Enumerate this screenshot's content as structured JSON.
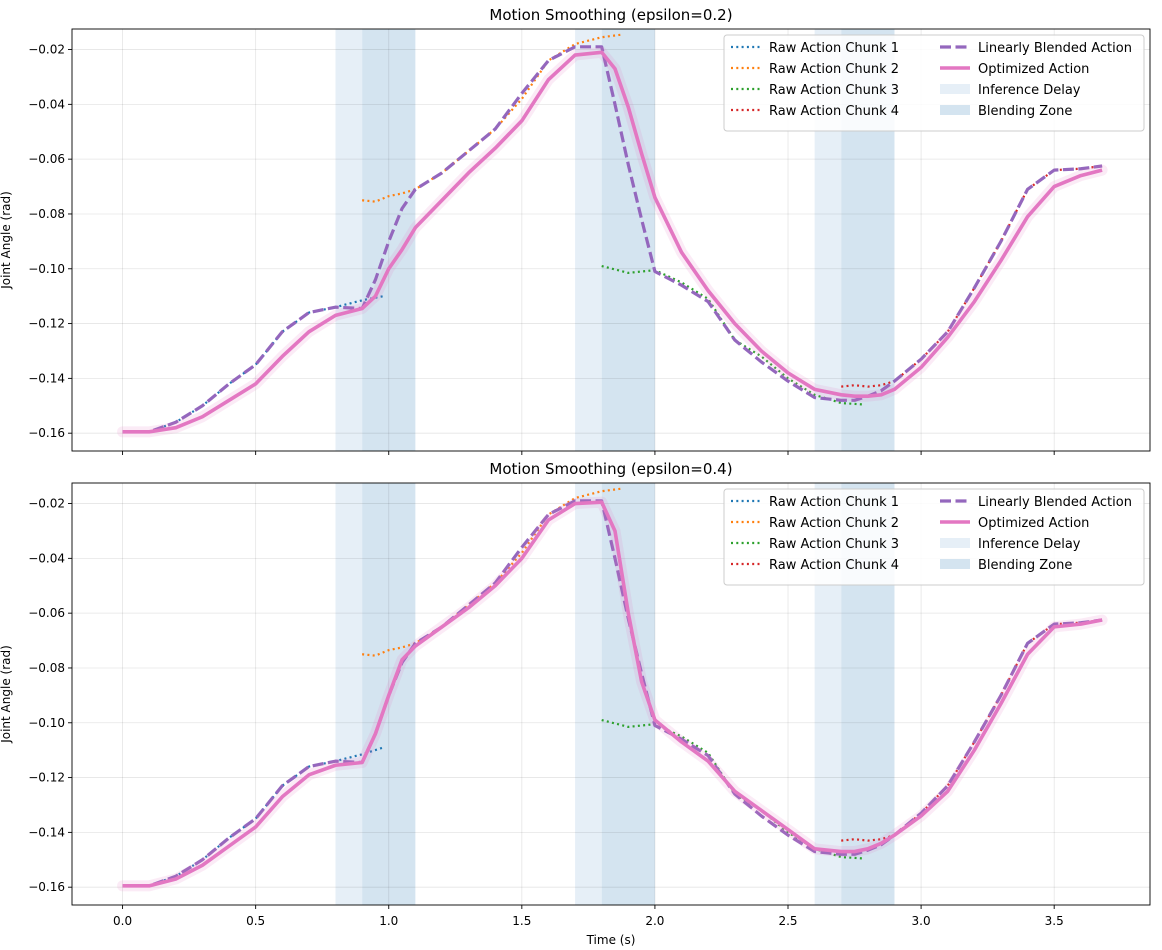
{
  "chart_data": [
    {
      "type": "line",
      "title": "Motion Smoothing (epsilon=0.2)",
      "xlabel": "",
      "ylabel": "Joint Angle (rad)",
      "xlim": [
        -0.19,
        3.86
      ],
      "ylim": [
        -0.1665,
        -0.0125
      ],
      "xticks": [
        0.0,
        0.5,
        1.0,
        1.5,
        2.0,
        2.5,
        3.0,
        3.5
      ],
      "xtick_labels": [],
      "yticks": [
        -0.16,
        -0.14,
        -0.12,
        -0.1,
        -0.08,
        -0.06,
        -0.04,
        -0.02
      ],
      "ytick_labels": [
        "−0.16",
        "−0.14",
        "−0.12",
        "−0.10",
        "−0.08",
        "−0.06",
        "−0.04",
        "−0.02"
      ],
      "grid": true,
      "legend_position": "top-right",
      "legend": [
        {
          "label": "Raw Action Chunk 1",
          "style": "dotted",
          "color": "#1f77b4"
        },
        {
          "label": "Raw Action Chunk 2",
          "style": "dotted",
          "color": "#ff7f0e"
        },
        {
          "label": "Raw Action Chunk 3",
          "style": "dotted",
          "color": "#2ca02c"
        },
        {
          "label": "Raw Action Chunk 4",
          "style": "dotted",
          "color": "#d62728"
        },
        {
          "label": "Linearly Blended Action",
          "style": "dashed",
          "color": "#9467bd"
        },
        {
          "label": "Optimized Action",
          "style": "solid",
          "color": "#e377c2"
        },
        {
          "label": "Inference Delay",
          "style": "patch",
          "color": "#e6eff7"
        },
        {
          "label": "Blending Zone",
          "style": "patch",
          "color": "#d4e4f0"
        }
      ],
      "spans": [
        {
          "kind": "Inference Delay",
          "x": [
            0.8,
            0.9
          ]
        },
        {
          "kind": "Blending Zone",
          "x": [
            0.9,
            1.1
          ]
        },
        {
          "kind": "Inference Delay",
          "x": [
            1.7,
            1.8
          ]
        },
        {
          "kind": "Blending Zone",
          "x": [
            1.8,
            2.0
          ]
        },
        {
          "kind": "Inference Delay",
          "x": [
            2.6,
            2.7
          ]
        },
        {
          "kind": "Blending Zone",
          "x": [
            2.7,
            2.9
          ]
        }
      ],
      "series": [
        {
          "name": "Raw Action Chunk 1",
          "color": "#1f77b4",
          "style": "dotted",
          "x": [
            0.0,
            0.1,
            0.2,
            0.3,
            0.4,
            0.5,
            0.6,
            0.7,
            0.8,
            0.9,
            0.98
          ],
          "y": [
            -0.1595,
            -0.1595,
            -0.156,
            -0.15,
            -0.142,
            -0.135,
            -0.123,
            -0.116,
            -0.114,
            -0.1115,
            -0.11
          ]
        },
        {
          "name": "Raw Action Chunk 2",
          "color": "#ff7f0e",
          "style": "dotted",
          "x": [
            0.9,
            0.95,
            1.0,
            1.05,
            1.1,
            1.2,
            1.3,
            1.4,
            1.5,
            1.6,
            1.7,
            1.8,
            1.88
          ],
          "y": [
            -0.075,
            -0.0755,
            -0.0735,
            -0.0725,
            -0.071,
            -0.065,
            -0.057,
            -0.049,
            -0.038,
            -0.024,
            -0.018,
            -0.0155,
            -0.0145
          ]
        },
        {
          "name": "Raw Action Chunk 3",
          "color": "#2ca02c",
          "style": "dotted",
          "x": [
            1.8,
            1.9,
            2.0,
            2.1,
            2.2,
            2.3,
            2.4,
            2.5,
            2.6,
            2.7,
            2.78
          ],
          "y": [
            -0.099,
            -0.1015,
            -0.1005,
            -0.105,
            -0.111,
            -0.126,
            -0.132,
            -0.14,
            -0.146,
            -0.149,
            -0.1495
          ]
        },
        {
          "name": "Raw Action Chunk 4",
          "color": "#d62728",
          "style": "dotted",
          "x": [
            2.7,
            2.75,
            2.8,
            2.85,
            2.9,
            3.0,
            3.1,
            3.2,
            3.3,
            3.4,
            3.5,
            3.6,
            3.68
          ],
          "y": [
            -0.143,
            -0.1425,
            -0.143,
            -0.1425,
            -0.141,
            -0.133,
            -0.123,
            -0.107,
            -0.09,
            -0.071,
            -0.064,
            -0.0635,
            -0.0625
          ]
        },
        {
          "name": "Linearly Blended Action",
          "color": "#9467bd",
          "style": "dashed",
          "x": [
            0.0,
            0.1,
            0.2,
            0.3,
            0.4,
            0.5,
            0.6,
            0.7,
            0.8,
            0.9,
            0.95,
            1.0,
            1.05,
            1.1,
            1.2,
            1.3,
            1.4,
            1.5,
            1.6,
            1.7,
            1.8,
            1.85,
            1.9,
            1.95,
            2.0,
            2.1,
            2.2,
            2.3,
            2.4,
            2.5,
            2.6,
            2.7,
            2.75,
            2.8,
            2.85,
            2.9,
            3.0,
            3.1,
            3.2,
            3.3,
            3.4,
            3.5,
            3.6,
            3.68
          ],
          "y": [
            -0.1595,
            -0.1595,
            -0.156,
            -0.15,
            -0.142,
            -0.135,
            -0.123,
            -0.116,
            -0.114,
            -0.1145,
            -0.104,
            -0.09,
            -0.078,
            -0.071,
            -0.065,
            -0.057,
            -0.049,
            -0.036,
            -0.024,
            -0.019,
            -0.019,
            -0.04,
            -0.062,
            -0.082,
            -0.101,
            -0.106,
            -0.112,
            -0.126,
            -0.134,
            -0.141,
            -0.147,
            -0.148,
            -0.148,
            -0.1465,
            -0.1445,
            -0.141,
            -0.133,
            -0.123,
            -0.107,
            -0.09,
            -0.071,
            -0.064,
            -0.0635,
            -0.0625
          ]
        },
        {
          "name": "Optimized Action",
          "color": "#e377c2",
          "style": "solid",
          "x": [
            0.0,
            0.1,
            0.2,
            0.3,
            0.4,
            0.5,
            0.6,
            0.7,
            0.8,
            0.9,
            0.95,
            1.0,
            1.05,
            1.1,
            1.2,
            1.3,
            1.4,
            1.5,
            1.6,
            1.7,
            1.8,
            1.85,
            1.9,
            1.95,
            2.0,
            2.1,
            2.2,
            2.3,
            2.4,
            2.5,
            2.6,
            2.7,
            2.75,
            2.8,
            2.85,
            2.9,
            3.0,
            3.1,
            3.2,
            3.3,
            3.4,
            3.5,
            3.6,
            3.68
          ],
          "y": [
            -0.1595,
            -0.1595,
            -0.158,
            -0.154,
            -0.148,
            -0.142,
            -0.132,
            -0.123,
            -0.117,
            -0.1145,
            -0.11,
            -0.1,
            -0.093,
            -0.085,
            -0.075,
            -0.065,
            -0.056,
            -0.046,
            -0.031,
            -0.022,
            -0.021,
            -0.027,
            -0.041,
            -0.058,
            -0.074,
            -0.094,
            -0.108,
            -0.12,
            -0.13,
            -0.138,
            -0.144,
            -0.146,
            -0.1465,
            -0.1465,
            -0.146,
            -0.144,
            -0.136,
            -0.125,
            -0.112,
            -0.097,
            -0.081,
            -0.07,
            -0.066,
            -0.064
          ]
        }
      ]
    },
    {
      "type": "line",
      "title": "Motion Smoothing (epsilon=0.4)",
      "xlabel": "Time (s)",
      "ylabel": "Joint Angle (rad)",
      "xlim": [
        -0.19,
        3.86
      ],
      "ylim": [
        -0.1665,
        -0.0125
      ],
      "xticks": [
        0.0,
        0.5,
        1.0,
        1.5,
        2.0,
        2.5,
        3.0,
        3.5
      ],
      "xtick_labels": [
        "0.0",
        "0.5",
        "1.0",
        "1.5",
        "2.0",
        "2.5",
        "3.0",
        "3.5"
      ],
      "yticks": [
        -0.16,
        -0.14,
        -0.12,
        -0.1,
        -0.08,
        -0.06,
        -0.04,
        -0.02
      ],
      "ytick_labels": [
        "−0.16",
        "−0.14",
        "−0.12",
        "−0.10",
        "−0.08",
        "−0.06",
        "−0.04",
        "−0.02"
      ],
      "grid": true,
      "legend_position": "top-right",
      "legend": [
        {
          "label": "Raw Action Chunk 1",
          "style": "dotted",
          "color": "#1f77b4"
        },
        {
          "label": "Raw Action Chunk 2",
          "style": "dotted",
          "color": "#ff7f0e"
        },
        {
          "label": "Raw Action Chunk 3",
          "style": "dotted",
          "color": "#2ca02c"
        },
        {
          "label": "Raw Action Chunk 4",
          "style": "dotted",
          "color": "#d62728"
        },
        {
          "label": "Linearly Blended Action",
          "style": "dashed",
          "color": "#9467bd"
        },
        {
          "label": "Optimized Action",
          "style": "solid",
          "color": "#e377c2"
        },
        {
          "label": "Inference Delay",
          "style": "patch",
          "color": "#e6eff7"
        },
        {
          "label": "Blending Zone",
          "style": "patch",
          "color": "#d4e4f0"
        }
      ],
      "spans": [
        {
          "kind": "Inference Delay",
          "x": [
            0.8,
            0.9
          ]
        },
        {
          "kind": "Blending Zone",
          "x": [
            0.9,
            1.1
          ]
        },
        {
          "kind": "Inference Delay",
          "x": [
            1.7,
            1.8
          ]
        },
        {
          "kind": "Blending Zone",
          "x": [
            1.8,
            2.0
          ]
        },
        {
          "kind": "Inference Delay",
          "x": [
            2.6,
            2.7
          ]
        },
        {
          "kind": "Blending Zone",
          "x": [
            2.7,
            2.9
          ]
        }
      ],
      "series": [
        {
          "name": "Raw Action Chunk 1",
          "color": "#1f77b4",
          "style": "dotted",
          "x": [
            0.0,
            0.1,
            0.2,
            0.3,
            0.4,
            0.5,
            0.6,
            0.7,
            0.8,
            0.9,
            0.98
          ],
          "y": [
            -0.1595,
            -0.1595,
            -0.156,
            -0.15,
            -0.142,
            -0.135,
            -0.123,
            -0.116,
            -0.114,
            -0.1115,
            -0.109
          ]
        },
        {
          "name": "Raw Action Chunk 2",
          "color": "#ff7f0e",
          "style": "dotted",
          "x": [
            0.9,
            0.95,
            1.0,
            1.05,
            1.1,
            1.2,
            1.3,
            1.4,
            1.5,
            1.6,
            1.7,
            1.8,
            1.88
          ],
          "y": [
            -0.075,
            -0.0755,
            -0.0735,
            -0.0725,
            -0.071,
            -0.065,
            -0.057,
            -0.049,
            -0.038,
            -0.024,
            -0.018,
            -0.0155,
            -0.0145
          ]
        },
        {
          "name": "Raw Action Chunk 3",
          "color": "#2ca02c",
          "style": "dotted",
          "x": [
            1.8,
            1.9,
            2.0,
            2.1,
            2.2,
            2.3,
            2.4,
            2.5,
            2.6,
            2.7,
            2.78
          ],
          "y": [
            -0.099,
            -0.1015,
            -0.1005,
            -0.105,
            -0.111,
            -0.126,
            -0.132,
            -0.14,
            -0.146,
            -0.149,
            -0.1495
          ]
        },
        {
          "name": "Raw Action Chunk 4",
          "color": "#d62728",
          "style": "dotted",
          "x": [
            2.7,
            2.75,
            2.8,
            2.85,
            2.9,
            3.0,
            3.1,
            3.2,
            3.3,
            3.4,
            3.5,
            3.6,
            3.68
          ],
          "y": [
            -0.143,
            -0.1425,
            -0.143,
            -0.1425,
            -0.141,
            -0.133,
            -0.123,
            -0.107,
            -0.09,
            -0.071,
            -0.064,
            -0.0635,
            -0.0625
          ]
        },
        {
          "name": "Linearly Blended Action",
          "color": "#9467bd",
          "style": "dashed",
          "x": [
            0.0,
            0.1,
            0.2,
            0.3,
            0.4,
            0.5,
            0.6,
            0.7,
            0.8,
            0.9,
            0.95,
            1.0,
            1.05,
            1.1,
            1.2,
            1.3,
            1.4,
            1.5,
            1.6,
            1.7,
            1.8,
            1.85,
            1.9,
            1.95,
            2.0,
            2.1,
            2.2,
            2.3,
            2.4,
            2.5,
            2.6,
            2.7,
            2.75,
            2.8,
            2.85,
            2.9,
            3.0,
            3.1,
            3.2,
            3.3,
            3.4,
            3.5,
            3.6,
            3.68
          ],
          "y": [
            -0.1595,
            -0.1595,
            -0.156,
            -0.15,
            -0.142,
            -0.135,
            -0.123,
            -0.116,
            -0.114,
            -0.1145,
            -0.104,
            -0.09,
            -0.078,
            -0.071,
            -0.065,
            -0.057,
            -0.049,
            -0.036,
            -0.024,
            -0.019,
            -0.019,
            -0.04,
            -0.062,
            -0.082,
            -0.101,
            -0.106,
            -0.112,
            -0.126,
            -0.134,
            -0.141,
            -0.147,
            -0.148,
            -0.148,
            -0.1465,
            -0.1445,
            -0.141,
            -0.133,
            -0.123,
            -0.107,
            -0.09,
            -0.071,
            -0.064,
            -0.0635,
            -0.0625
          ]
        },
        {
          "name": "Optimized Action",
          "color": "#e377c2",
          "style": "solid",
          "x": [
            0.0,
            0.1,
            0.2,
            0.3,
            0.4,
            0.5,
            0.6,
            0.7,
            0.8,
            0.9,
            0.95,
            1.0,
            1.05,
            1.1,
            1.2,
            1.3,
            1.4,
            1.5,
            1.6,
            1.7,
            1.8,
            1.85,
            1.9,
            1.95,
            2.0,
            2.1,
            2.2,
            2.3,
            2.4,
            2.5,
            2.6,
            2.7,
            2.75,
            2.8,
            2.85,
            2.9,
            3.0,
            3.1,
            3.2,
            3.3,
            3.4,
            3.5,
            3.6,
            3.68
          ],
          "y": [
            -0.1595,
            -0.1595,
            -0.157,
            -0.152,
            -0.145,
            -0.138,
            -0.127,
            -0.119,
            -0.1155,
            -0.1145,
            -0.104,
            -0.09,
            -0.077,
            -0.072,
            -0.065,
            -0.058,
            -0.05,
            -0.04,
            -0.026,
            -0.02,
            -0.0195,
            -0.03,
            -0.06,
            -0.085,
            -0.099,
            -0.107,
            -0.114,
            -0.125,
            -0.132,
            -0.139,
            -0.146,
            -0.147,
            -0.147,
            -0.146,
            -0.144,
            -0.141,
            -0.134,
            -0.125,
            -0.11,
            -0.093,
            -0.075,
            -0.065,
            -0.064,
            -0.0625
          ]
        }
      ]
    }
  ]
}
